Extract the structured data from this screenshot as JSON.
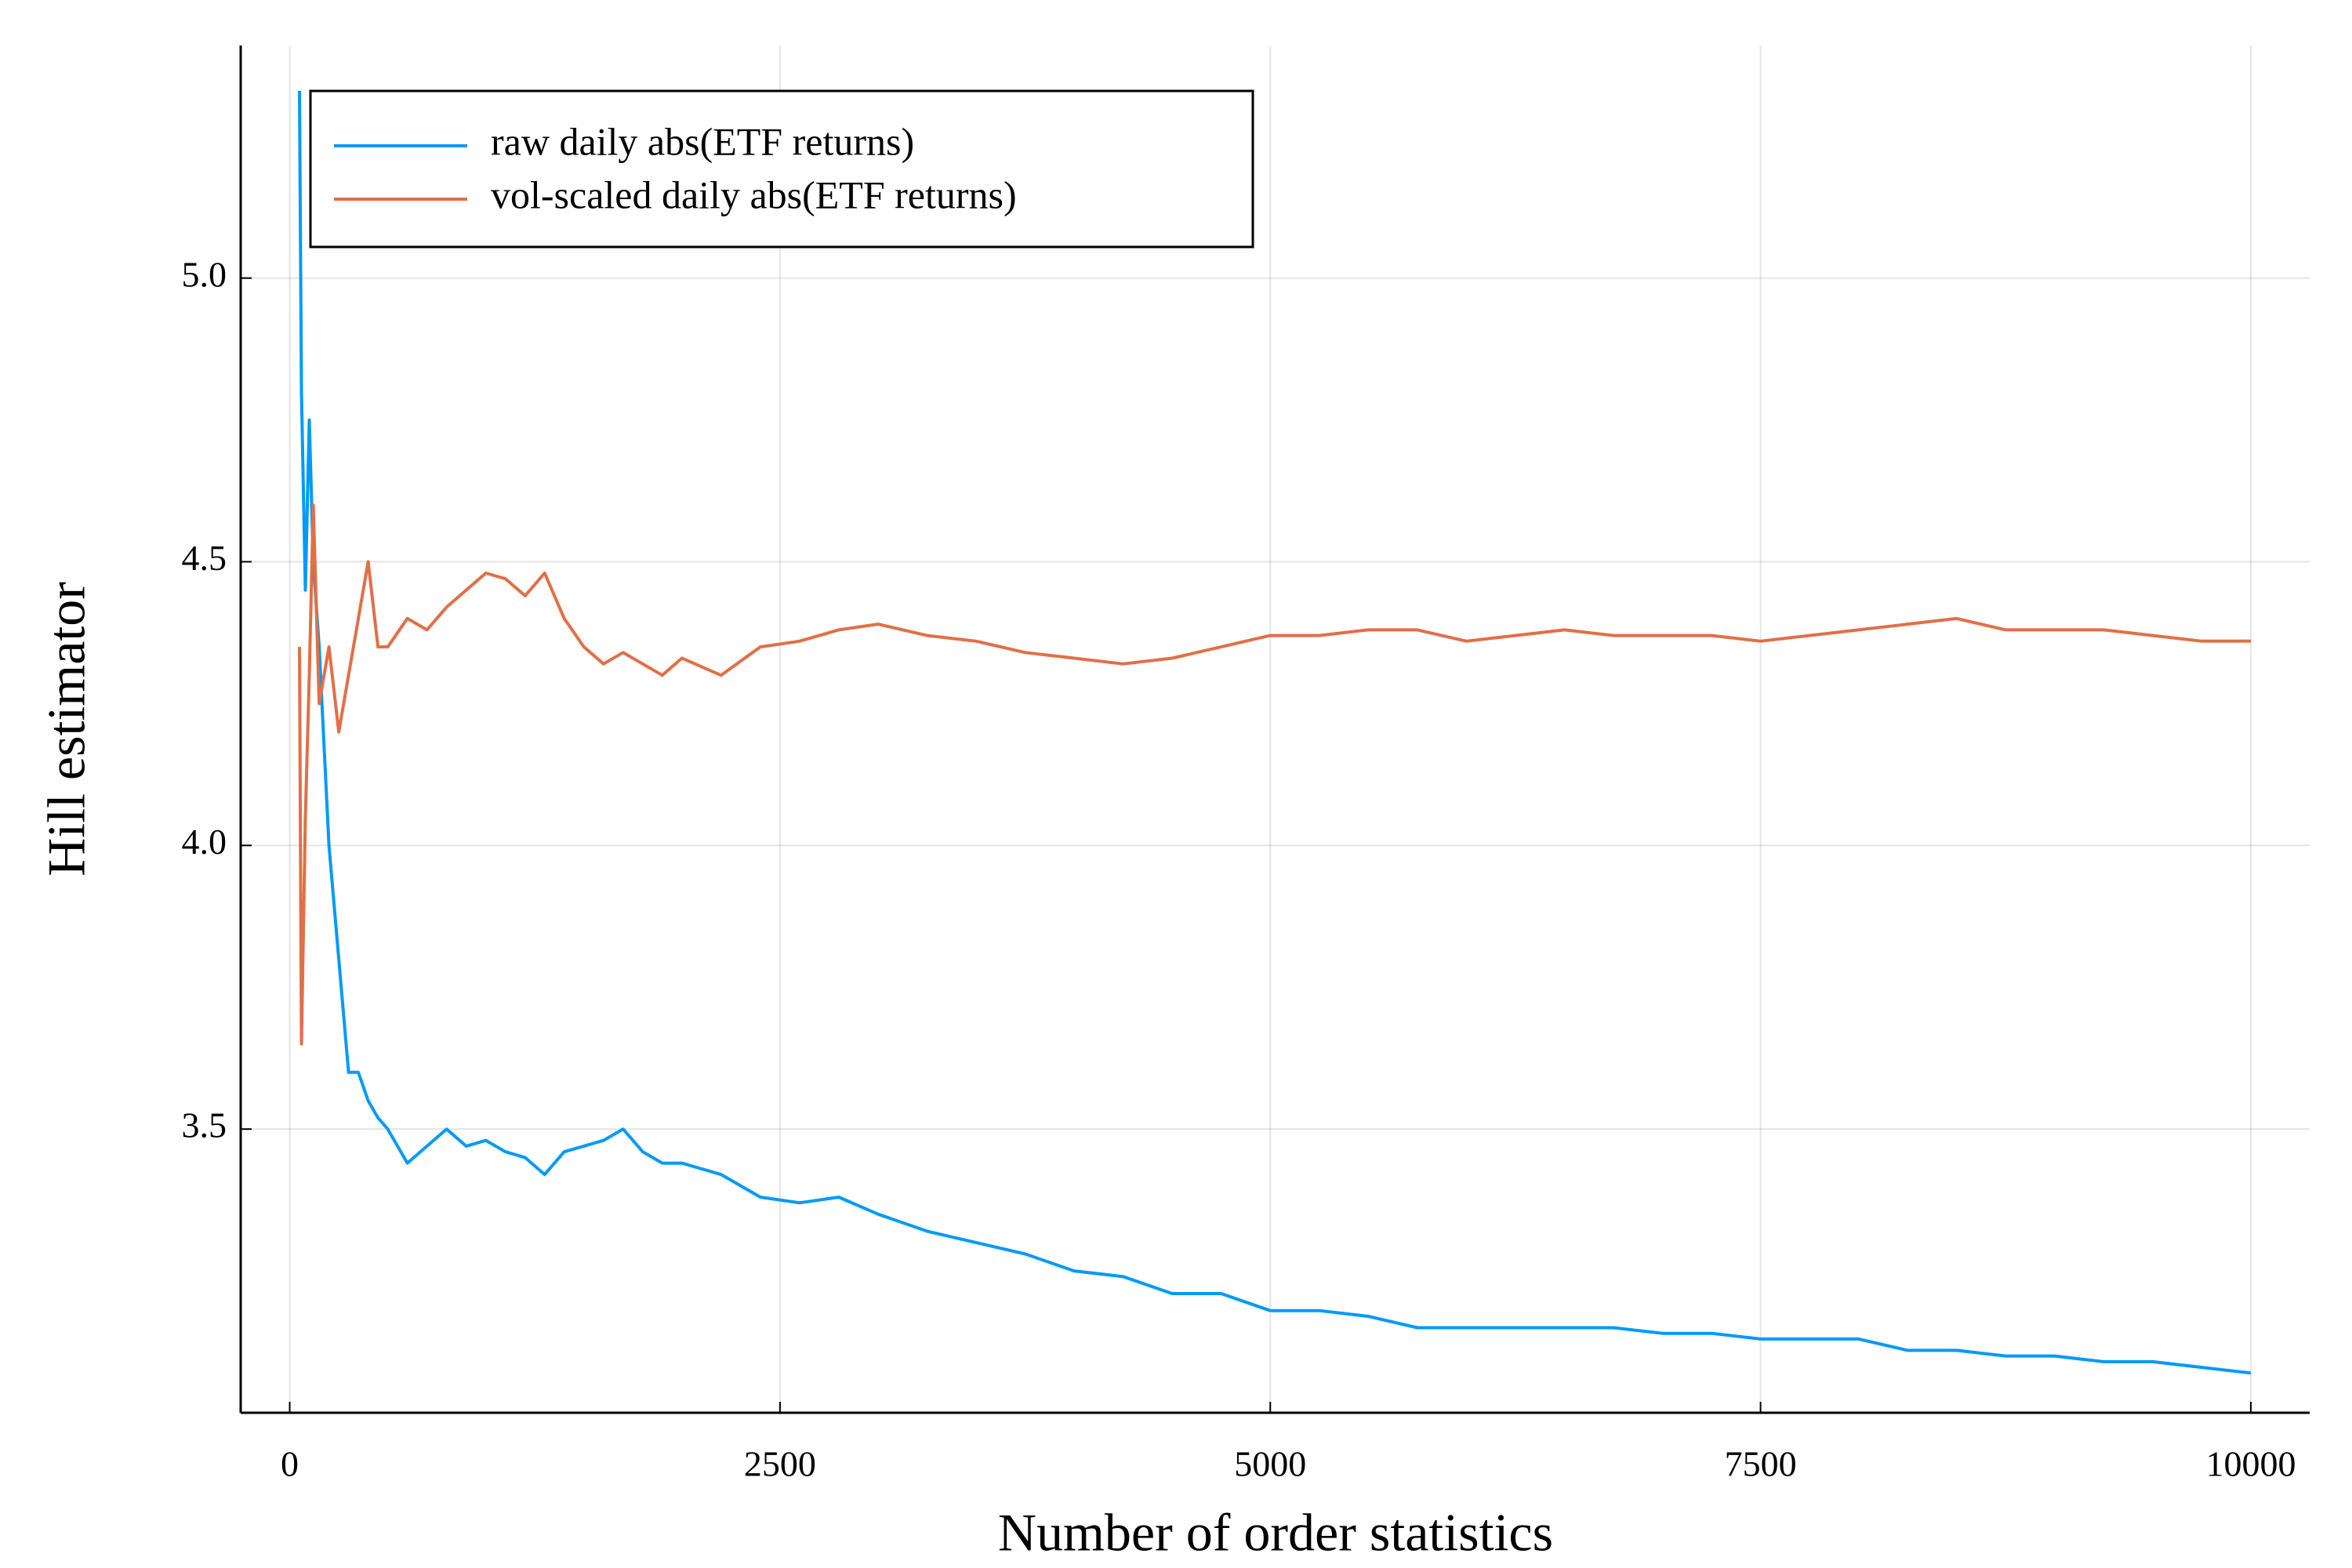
{
  "chart_data": {
    "type": "line",
    "xlabel": "Number of order statistics",
    "ylabel": "Hill estimator",
    "x": [
      50,
      60,
      80,
      100,
      120,
      150,
      200,
      250,
      300,
      350,
      400,
      450,
      500,
      600,
      700,
      800,
      900,
      1000,
      1100,
      1200,
      1300,
      1400,
      1500,
      1600,
      1700,
      1800,
      1900,
      2000,
      2200,
      2400,
      2600,
      2800,
      3000,
      3250,
      3500,
      3750,
      4000,
      4250,
      4500,
      4750,
      5000,
      5250,
      5500,
      5750,
      6000,
      6250,
      6500,
      6750,
      7000,
      7250,
      7500,
      7750,
      8000,
      8250,
      8500,
      8750,
      9000,
      9250,
      9500,
      9750,
      10000
    ],
    "series": [
      {
        "name": "raw daily abs(ETF returns)",
        "color": "#009af9",
        "values": [
          5.33,
          4.8,
          4.45,
          4.75,
          4.5,
          4.35,
          4.0,
          3.8,
          3.6,
          3.6,
          3.55,
          3.52,
          3.5,
          3.44,
          3.47,
          3.5,
          3.47,
          3.48,
          3.46,
          3.45,
          3.42,
          3.46,
          3.47,
          3.48,
          3.5,
          3.46,
          3.44,
          3.44,
          3.42,
          3.38,
          3.37,
          3.38,
          3.35,
          3.32,
          3.3,
          3.28,
          3.25,
          3.24,
          3.21,
          3.21,
          3.18,
          3.18,
          3.17,
          3.15,
          3.15,
          3.15,
          3.15,
          3.15,
          3.14,
          3.14,
          3.13,
          3.13,
          3.13,
          3.11,
          3.11,
          3.1,
          3.1,
          3.09,
          3.09,
          3.08,
          3.07
        ]
      },
      {
        "name": "vol-scaled daily abs(ETF returns)",
        "color": "#e26f46",
        "values": [
          4.35,
          3.65,
          4.05,
          4.3,
          4.6,
          4.25,
          4.35,
          4.2,
          4.3,
          4.4,
          4.5,
          4.35,
          4.35,
          4.4,
          4.38,
          4.42,
          4.45,
          4.48,
          4.47,
          4.44,
          4.48,
          4.4,
          4.35,
          4.32,
          4.34,
          4.32,
          4.3,
          4.33,
          4.3,
          4.35,
          4.36,
          4.38,
          4.39,
          4.37,
          4.36,
          4.34,
          4.33,
          4.32,
          4.33,
          4.35,
          4.37,
          4.37,
          4.38,
          4.38,
          4.36,
          4.37,
          4.38,
          4.37,
          4.37,
          4.37,
          4.36,
          4.37,
          4.38,
          4.39,
          4.4,
          4.38,
          4.38,
          4.38,
          4.37,
          4.36,
          4.36
        ]
      }
    ],
    "xlim": [
      -250,
      10300
    ],
    "ylim": [
      3.0,
      5.41
    ],
    "xticks": [
      0,
      2500,
      5000,
      7500,
      10000
    ],
    "yticks": [
      3.5,
      {
        "value": 4.0,
        "label": "4.0"
      },
      4.5,
      {
        "value": 5.0,
        "label": "5.0"
      }
    ],
    "grid": true,
    "legend": "top-left"
  }
}
